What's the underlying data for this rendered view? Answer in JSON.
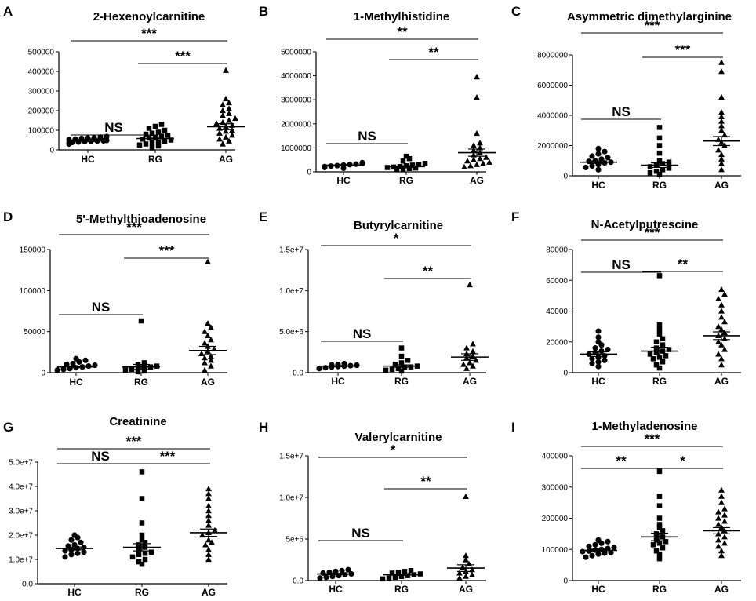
{
  "chart_data": [
    {
      "panel": "A",
      "type": "scatter",
      "title": "2-Hexenoylcarnitine",
      "categories": [
        "HC",
        "RG",
        "AG"
      ],
      "yticks": [
        "0",
        "100000",
        "200000",
        "300000",
        "400000",
        "500000"
      ],
      "ylim": [
        0,
        500000
      ],
      "groups": [
        {
          "name": "HC",
          "marker": "circle",
          "mean": 47000,
          "sem": 4000,
          "values": [
            30000,
            35000,
            38000,
            40000,
            42000,
            44000,
            45000,
            46000,
            48000,
            50000,
            52000,
            55000,
            58000,
            60000,
            62000,
            65000,
            68000
          ]
        },
        {
          "name": "RG",
          "marker": "square",
          "mean": 58000,
          "sem": 7000,
          "values": [
            10000,
            20000,
            25000,
            30000,
            35000,
            40000,
            45000,
            50000,
            55000,
            60000,
            65000,
            70000,
            75000,
            80000,
            85000,
            90000,
            100000,
            110000,
            120000,
            130000
          ]
        },
        {
          "name": "AG",
          "marker": "triangle",
          "mean": 118000,
          "sem": 15000,
          "values": [
            30000,
            45000,
            55000,
            65000,
            75000,
            85000,
            95000,
            100000,
            110000,
            120000,
            125000,
            135000,
            140000,
            150000,
            160000,
            175000,
            185000,
            200000,
            210000,
            230000,
            240000,
            260000,
            405000
          ]
        }
      ],
      "brackets": [
        {
          "from": 0,
          "to": 1,
          "label": "NS"
        },
        {
          "from": 1,
          "to": 2,
          "label": "***"
        },
        {
          "from": 0,
          "to": 2,
          "label": "***"
        }
      ]
    },
    {
      "panel": "B",
      "type": "scatter",
      "title": "1-Methylhistidine",
      "categories": [
        "HC",
        "RG",
        "AG"
      ],
      "yticks": [
        "0",
        "1000000",
        "2000000",
        "3000000",
        "4000000",
        "5000000"
      ],
      "ylim": [
        0,
        5000000
      ],
      "groups": [
        {
          "name": "HC",
          "marker": "circle",
          "mean": 280000,
          "sem": 30000,
          "values": [
            150000,
            180000,
            200000,
            220000,
            240000,
            260000,
            280000,
            300000,
            320000,
            340000,
            360000,
            380000
          ]
        },
        {
          "name": "RG",
          "marker": "square",
          "mean": 220000,
          "sem": 40000,
          "values": [
            100000,
            120000,
            140000,
            160000,
            180000,
            200000,
            220000,
            250000,
            280000,
            300000,
            350000,
            450000,
            550000,
            650000
          ]
        },
        {
          "name": "AG",
          "marker": "triangle",
          "mean": 800000,
          "sem": 150000,
          "values": [
            200000,
            250000,
            300000,
            350000,
            400000,
            450000,
            500000,
            550000,
            600000,
            700000,
            800000,
            900000,
            1000000,
            1100000,
            1200000,
            1600000,
            3100000,
            3950000
          ]
        }
      ],
      "brackets": [
        {
          "from": 0,
          "to": 1,
          "label": "NS"
        },
        {
          "from": 1,
          "to": 2,
          "label": "**"
        },
        {
          "from": 0,
          "to": 2,
          "label": "**"
        }
      ]
    },
    {
      "panel": "C",
      "type": "scatter",
      "title": "Asymmetric dimethylarginine",
      "categories": [
        "HC",
        "RG",
        "AG"
      ],
      "yticks": [
        "0",
        "2000000",
        "4000000",
        "6000000",
        "8000000"
      ],
      "ylim": [
        0,
        8000000
      ],
      "groups": [
        {
          "name": "HC",
          "marker": "circle",
          "mean": 900000,
          "sem": 80000,
          "values": [
            400000,
            550000,
            650000,
            750000,
            850000,
            900000,
            950000,
            1000000,
            1100000,
            1200000,
            1300000,
            1450000,
            1600000,
            1800000
          ]
        },
        {
          "name": "RG",
          "marker": "square",
          "mean": 700000,
          "sem": 150000,
          "values": [
            100000,
            200000,
            300000,
            400000,
            500000,
            600000,
            700000,
            800000,
            900000,
            1000000,
            1500000,
            2000000,
            2500000,
            3200000
          ]
        },
        {
          "name": "AG",
          "marker": "triangle",
          "mean": 2300000,
          "sem": 300000,
          "values": [
            400000,
            800000,
            1100000,
            1400000,
            1700000,
            2000000,
            2200000,
            2400000,
            2700000,
            3000000,
            3300000,
            3600000,
            3900000,
            4200000,
            5200000,
            6900000,
            7500000
          ]
        }
      ],
      "brackets": [
        {
          "from": 0,
          "to": 1,
          "label": "NS"
        },
        {
          "from": 1,
          "to": 2,
          "label": "***"
        },
        {
          "from": 0,
          "to": 2,
          "label": "***"
        }
      ]
    },
    {
      "panel": "D",
      "type": "scatter",
      "title": "5'-Methylthioadenosine",
      "categories": [
        "HC",
        "RG",
        "AG"
      ],
      "yticks": [
        "0",
        "50000",
        "100000",
        "150000"
      ],
      "ylim": [
        0,
        150000
      ],
      "groups": [
        {
          "name": "HC",
          "marker": "circle",
          "mean": 7000,
          "sem": 800,
          "values": [
            3000,
            4000,
            5000,
            6000,
            7000,
            8000,
            9000,
            10000,
            11000,
            13000,
            15000,
            17000
          ]
        },
        {
          "name": "RG",
          "marker": "square",
          "mean": 7000,
          "sem": 3000,
          "values": [
            1000,
            2000,
            3000,
            4000,
            5000,
            6000,
            7000,
            8000,
            10000,
            12000,
            63000
          ]
        },
        {
          "name": "AG",
          "marker": "triangle",
          "mean": 27000,
          "sem": 5000,
          "values": [
            3000,
            8000,
            12000,
            15000,
            18000,
            20000,
            23000,
            26000,
            29000,
            32000,
            36000,
            40000,
            45000,
            50000,
            55000,
            60000,
            135000
          ]
        }
      ],
      "brackets": [
        {
          "from": 0,
          "to": 1,
          "label": "NS"
        },
        {
          "from": 1,
          "to": 2,
          "label": "***"
        },
        {
          "from": 0,
          "to": 2,
          "label": "***"
        }
      ]
    },
    {
      "panel": "E",
      "type": "scatter",
      "title": "Butyrylcarnitine",
      "categories": [
        "HC",
        "RG",
        "AG"
      ],
      "yticks": [
        "0.0",
        "5.0e+6",
        "1.0e+7",
        "1.5e+7"
      ],
      "ylim": [
        0,
        15000000
      ],
      "groups": [
        {
          "name": "HC",
          "marker": "circle",
          "mean": 800000,
          "sem": 60000,
          "values": [
            500000,
            600000,
            700000,
            750000,
            800000,
            850000,
            900000,
            950000,
            1000000,
            1100000
          ]
        },
        {
          "name": "RG",
          "marker": "square",
          "mean": 800000,
          "sem": 150000,
          "values": [
            200000,
            300000,
            400000,
            500000,
            600000,
            700000,
            800000,
            1000000,
            1200000,
            1500000,
            2000000,
            3000000
          ]
        },
        {
          "name": "AG",
          "marker": "triangle",
          "mean": 1900000,
          "sem": 400000,
          "values": [
            500000,
            800000,
            1000000,
            1200000,
            1500000,
            1800000,
            2000000,
            2300000,
            2600000,
            3000000,
            3500000,
            10700000
          ]
        }
      ],
      "brackets": [
        {
          "from": 0,
          "to": 1,
          "label": "NS"
        },
        {
          "from": 1,
          "to": 2,
          "label": "**"
        },
        {
          "from": 0,
          "to": 2,
          "label": "*"
        }
      ]
    },
    {
      "panel": "F",
      "type": "scatter",
      "title": "N-Acetylputrescine",
      "categories": [
        "HC",
        "RG",
        "AG"
      ],
      "yticks": [
        "0",
        "20000",
        "40000",
        "60000",
        "80000"
      ],
      "ylim": [
        0,
        80000
      ],
      "groups": [
        {
          "name": "HC",
          "marker": "circle",
          "mean": 12000,
          "sem": 1500,
          "values": [
            4000,
            6000,
            7000,
            8000,
            9000,
            10000,
            11000,
            12000,
            13000,
            14000,
            15000,
            16000,
            18000,
            20000,
            23000,
            27000
          ]
        },
        {
          "name": "RG",
          "marker": "square",
          "mean": 14000,
          "sem": 2500,
          "values": [
            3000,
            5000,
            7000,
            9000,
            10000,
            11000,
            12000,
            13000,
            14000,
            15000,
            16000,
            18000,
            20000,
            22000,
            25000,
            28000,
            31000,
            63000
          ]
        },
        {
          "name": "AG",
          "marker": "triangle",
          "mean": 24000,
          "sem": 2500,
          "values": [
            5000,
            9000,
            12000,
            15000,
            18000,
            20000,
            22000,
            24000,
            26000,
            28000,
            30000,
            33000,
            36000,
            40000,
            44000,
            48000,
            51000,
            54000
          ]
        }
      ],
      "brackets": [
        {
          "from": 0,
          "to": 1,
          "label": "NS"
        },
        {
          "from": 1,
          "to": 2,
          "label": "**"
        },
        {
          "from": 0,
          "to": 2,
          "label": "***"
        }
      ]
    },
    {
      "panel": "G",
      "type": "scatter",
      "title": "Creatinine",
      "categories": [
        "HC",
        "RG",
        "AG"
      ],
      "yticks": [
        "0.0",
        "1.0e+7",
        "2.0e+7",
        "3.0e+7",
        "4.0e+7",
        "5.0e+7"
      ],
      "ylim": [
        0,
        50000000
      ],
      "groups": [
        {
          "name": "HC",
          "marker": "circle",
          "mean": 14500000,
          "sem": 600000,
          "values": [
            11000000,
            12000000,
            12500000,
            13000000,
            13500000,
            14000000,
            14500000,
            15000000,
            15500000,
            16000000,
            17000000,
            18000000,
            19000000,
            20000000
          ]
        },
        {
          "name": "RG",
          "marker": "square",
          "mean": 15000000,
          "sem": 1500000,
          "values": [
            8000000,
            9000000,
            10000000,
            11000000,
            12000000,
            12500000,
            13000000,
            14000000,
            15000000,
            16000000,
            17000000,
            18000000,
            20000000,
            25000000,
            35000000,
            46000000
          ]
        },
        {
          "name": "AG",
          "marker": "triangle",
          "mean": 21000000,
          "sem": 1500000,
          "values": [
            10000000,
            12000000,
            14000000,
            16000000,
            17000000,
            18000000,
            20000000,
            21000000,
            22000000,
            24000000,
            26000000,
            28000000,
            30000000,
            32000000,
            35000000,
            37000000,
            39000000
          ]
        }
      ],
      "brackets": [
        {
          "from": 0,
          "to": 1,
          "label": "NS"
        },
        {
          "from": 1,
          "to": 2,
          "label": "***"
        },
        {
          "from": 0,
          "to": 2,
          "label": "***"
        }
      ]
    },
    {
      "panel": "H",
      "type": "scatter",
      "title": "Valerylcarnitine",
      "categories": [
        "HC",
        "RG",
        "AG"
      ],
      "yticks": [
        "0.0",
        "5e+6",
        "1.0e+7",
        "1.5e+7"
      ],
      "ylim": [
        0,
        15000000
      ],
      "groups": [
        {
          "name": "HC",
          "marker": "circle",
          "mean": 800000,
          "sem": 80000,
          "values": [
            300000,
            400000,
            500000,
            600000,
            700000,
            800000,
            900000,
            1000000,
            1100000,
            1200000,
            1300000
          ]
        },
        {
          "name": "RG",
          "marker": "square",
          "mean": 700000,
          "sem": 80000,
          "values": [
            200000,
            300000,
            400000,
            500000,
            600000,
            700000,
            800000,
            900000,
            1000000,
            1100000,
            1200000
          ]
        },
        {
          "name": "AG",
          "marker": "triangle",
          "mean": 1500000,
          "sem": 400000,
          "values": [
            300000,
            500000,
            700000,
            900000,
            1100000,
            1300000,
            1600000,
            2000000,
            2500000,
            3000000,
            10100000
          ]
        }
      ],
      "brackets": [
        {
          "from": 0,
          "to": 1,
          "label": "NS"
        },
        {
          "from": 1,
          "to": 2,
          "label": "**"
        },
        {
          "from": 0,
          "to": 2,
          "label": "*"
        }
      ]
    },
    {
      "panel": "I",
      "type": "scatter",
      "title": "1-Methyladenosine",
      "categories": [
        "HC",
        "RG",
        "AG"
      ],
      "yticks": [
        "0",
        "100000",
        "200000",
        "300000",
        "400000"
      ],
      "ylim": [
        0,
        400000
      ],
      "groups": [
        {
          "name": "HC",
          "marker": "circle",
          "mean": 97000,
          "sem": 4000,
          "values": [
            75000,
            80000,
            85000,
            88000,
            90000,
            93000,
            95000,
            98000,
            100000,
            103000,
            106000,
            110000,
            115000,
            120000,
            125000,
            130000
          ]
        },
        {
          "name": "RG",
          "marker": "square",
          "mean": 140000,
          "sem": 12000,
          "values": [
            70000,
            85000,
            95000,
            105000,
            115000,
            120000,
            125000,
            130000,
            140000,
            150000,
            160000,
            170000,
            180000,
            200000,
            240000,
            270000,
            350000
          ]
        },
        {
          "name": "AG",
          "marker": "triangle",
          "mean": 160000,
          "sem": 10000,
          "values": [
            80000,
            95000,
            110000,
            120000,
            130000,
            140000,
            150000,
            160000,
            170000,
            180000,
            190000,
            200000,
            210000,
            220000,
            230000,
            250000,
            270000,
            290000
          ]
        }
      ],
      "brackets": [
        {
          "from": 0,
          "to": 1,
          "label": "**"
        },
        {
          "from": 1,
          "to": 2,
          "label": "*"
        },
        {
          "from": 0,
          "to": 2,
          "label": "***"
        }
      ]
    }
  ]
}
